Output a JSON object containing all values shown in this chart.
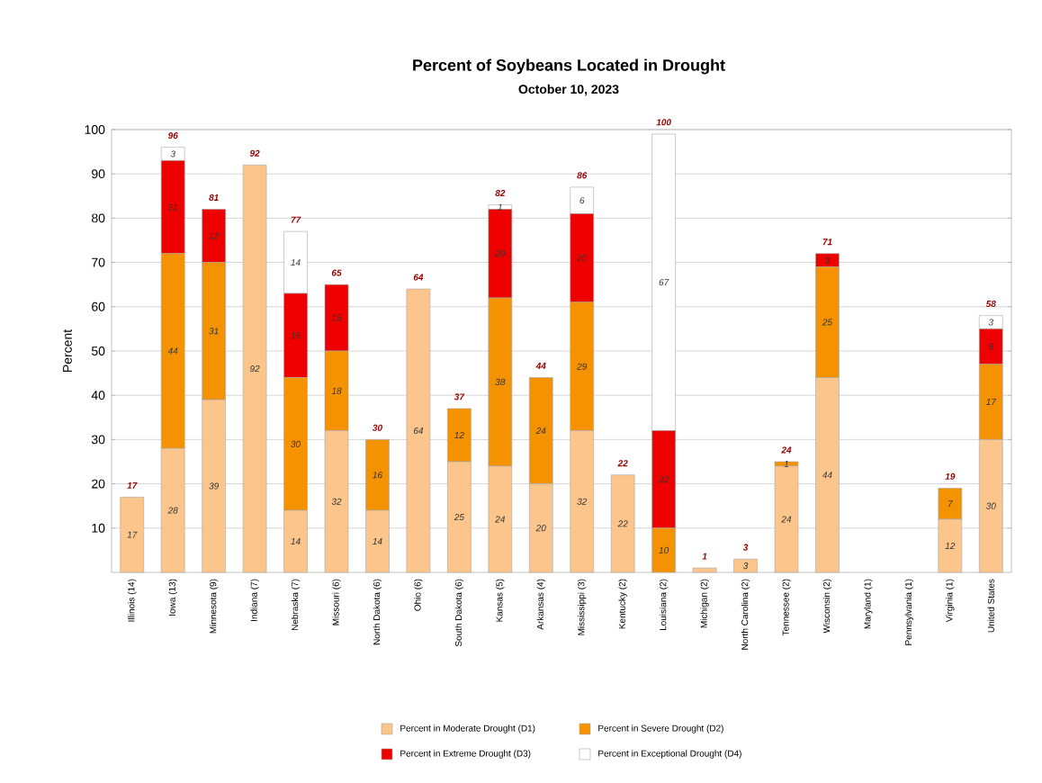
{
  "chart_data": {
    "type": "bar",
    "stacked": true,
    "title": "Percent of Soybeans Located in Drought",
    "subtitle": "October 10, 2023",
    "ylabel": "Percent",
    "categories": [
      "Illinois (14)",
      "Iowa (13)",
      "Minnesota (9)",
      "Indiana (7)",
      "Nebraska (7)",
      "Missouri (6)",
      "North Dakota (6)",
      "Ohio (6)",
      "South Dakota (6)",
      "Kansas (5)",
      "Arkansas (4)",
      "Mississippi (3)",
      "Kentucky (2)",
      "Louisiana (2)",
      "Michigan (2)",
      "North Carolina (2)",
      "Tennessee (2)",
      "Wisconsin (2)",
      "Maryland (1)",
      "Pennsylvania (1)",
      "Virginia (1)",
      "United States"
    ],
    "series": [
      {
        "name": "Percent in Moderate Drought (D1)",
        "color": "#fcc58c",
        "values": [
          17,
          28,
          39,
          92,
          14,
          32,
          14,
          64,
          25,
          24,
          20,
          32,
          22,
          0,
          1,
          3,
          24,
          44,
          0,
          0,
          12,
          30
        ],
        "value_labels": [
          "17",
          "28",
          "39",
          "92",
          "14",
          "32",
          "14",
          "64",
          "25",
          "24",
          "20",
          "32",
          "22",
          null,
          null,
          "3",
          "24",
          "44",
          null,
          null,
          "12",
          "30"
        ]
      },
      {
        "name": "Percent in Severe Drought (D2)",
        "color": "#f59200",
        "values": [
          0,
          44,
          31,
          0,
          30,
          18,
          16,
          0,
          12,
          38,
          24,
          29,
          0,
          10,
          0,
          0,
          1,
          25,
          0,
          0,
          7,
          17
        ],
        "value_labels": [
          null,
          "44",
          "31",
          null,
          "30",
          "18",
          "16",
          null,
          "12",
          "38",
          "24",
          "29",
          null,
          "10",
          null,
          null,
          "1",
          "25",
          null,
          null,
          "7",
          "17"
        ]
      },
      {
        "name": "Percent in Extreme Drought (D3)",
        "color": "#ee0000",
        "values": [
          0,
          21,
          12,
          0,
          19,
          15,
          0,
          0,
          0,
          20,
          0,
          20,
          0,
          22,
          0,
          0,
          0,
          3,
          0,
          0,
          0,
          8
        ],
        "value_labels": [
          null,
          "21",
          "12",
          null,
          "19",
          "15",
          null,
          null,
          null,
          "20",
          null,
          "20",
          null,
          "22",
          null,
          null,
          null,
          "3",
          null,
          null,
          null,
          "8"
        ]
      },
      {
        "name": "Percent in Exceptional Drought (D4)",
        "color": "#ffffff",
        "values": [
          0,
          3,
          0,
          0,
          14,
          0,
          0,
          0,
          0,
          1,
          0,
          6,
          0,
          67,
          0,
          0,
          0,
          0,
          0,
          0,
          0,
          3
        ],
        "value_labels": [
          null,
          "3",
          null,
          null,
          "14",
          null,
          null,
          null,
          null,
          "1",
          null,
          "6",
          null,
          "67",
          null,
          null,
          null,
          null,
          null,
          null,
          null,
          "3"
        ]
      }
    ],
    "totals": [
      "17",
      "96",
      "81",
      "92",
      "77",
      "65",
      "30",
      "64",
      "37",
      "82",
      "44",
      "86",
      "22",
      "100",
      "1",
      "3",
      "24",
      "71",
      null,
      null,
      "19",
      "58"
    ],
    "ylim": [
      0,
      100
    ],
    "yticks": [
      10,
      20,
      30,
      40,
      50,
      60,
      70,
      80,
      90,
      100
    ],
    "grid": "y",
    "legend": "bottom"
  }
}
